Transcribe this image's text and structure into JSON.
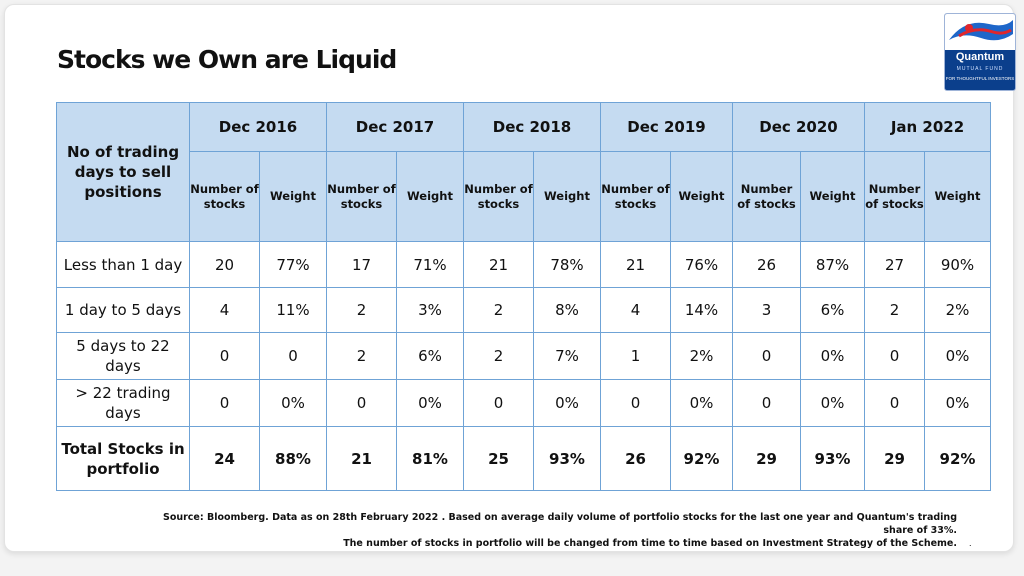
{
  "title": "Stocks we Own are Liquid",
  "logo": {
    "name": "Quantum",
    "sub": "MUTUAL FUND",
    "tagline": "FOR THOUGHTFUL INVESTORS"
  },
  "table": {
    "corner_header": "No of trading days to sell positions",
    "years": [
      "Dec 2016",
      "Dec 2017",
      "Dec 2018",
      "Dec 2019",
      "Dec 2020",
      "Jan 2022"
    ],
    "subheaders": [
      "Number of stocks",
      "Weight",
      "Number of stocks",
      "Weight",
      "Number of stocks",
      "Weight",
      "Number of stocks",
      "Weight",
      "Number of stocks",
      "Weight",
      "Number of stocks",
      "Weight"
    ],
    "rows": [
      {
        "label": "Less than 1 day",
        "values": [
          "20",
          "77%",
          "17",
          "71%",
          "21",
          "78%",
          "21",
          "76%",
          "26",
          "87%",
          "27",
          "90%"
        ]
      },
      {
        "label": "1 day to 5 days",
        "values": [
          "4",
          "11%",
          "2",
          "3%",
          "2",
          "8%",
          "4",
          "14%",
          "3",
          "6%",
          "2",
          "2%"
        ]
      },
      {
        "label": "5 days to 22 days",
        "values": [
          "0",
          "0",
          "2",
          "6%",
          "2",
          "7%",
          "1",
          "2%",
          "0",
          "0%",
          "0",
          "0%"
        ]
      },
      {
        "label": "> 22 trading days",
        "values": [
          "0",
          "0%",
          "0",
          "0%",
          "0",
          "0%",
          "0",
          "0%",
          "0",
          "0%",
          "0",
          "0%"
        ]
      },
      {
        "label": "Total Stocks in portfolio",
        "values": [
          "24",
          "88%",
          "21",
          "81%",
          "25",
          "93%",
          "26",
          "92%",
          "29",
          "93%",
          "29",
          "92%"
        ]
      }
    ]
  },
  "source_line1": "Source: Bloomberg. Data as on 28th February 2022 . Based on average daily volume of portfolio stocks for the last one  year and Quantum's trading share of  33%.",
  "source_line2": "The number of stocks in portfolio will be changed from time to time based on Investment Strategy of the Scheme.",
  "trailing_mark": ".",
  "colors": {
    "header_bg": "#c5dbf1",
    "border": "#6fa3d6",
    "logo_bg": "#0b3f8c"
  }
}
